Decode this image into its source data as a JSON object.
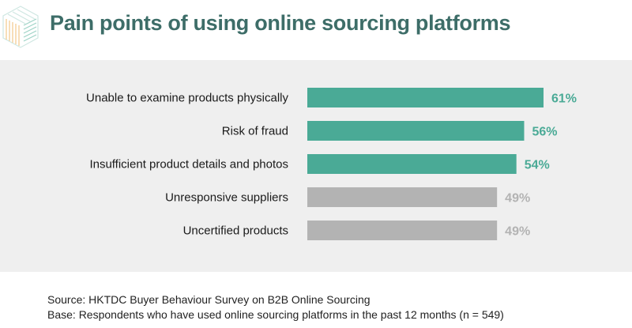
{
  "title": "Pain points of using online sourcing platforms",
  "colors": {
    "highlight": "#4aaa96",
    "muted": "#b3b3b3",
    "title": "#3d6d68",
    "panel": "#efefef"
  },
  "chart_data": {
    "type": "bar",
    "orientation": "horizontal",
    "categories": [
      "Unable to examine products physically",
      "Risk of fraud",
      "Insufficient product details and photos",
      "Unresponsive suppliers",
      "Uncertified products"
    ],
    "values": [
      61,
      56,
      54,
      49,
      49
    ],
    "value_labels": [
      "61%",
      "56%",
      "54%",
      "49%",
      "49%"
    ],
    "highlighted": [
      true,
      true,
      true,
      false,
      false
    ],
    "title": "Pain points of using online sourcing platforms",
    "xlabel": "",
    "ylabel": "",
    "grid": false,
    "legend": "none"
  },
  "footer": {
    "source": "Source: HKTDC Buyer Behaviour Survey on B2B Online Sourcing",
    "base": "Base: Respondents who have used online sourcing platforms in the past 12 months (n = 549)"
  }
}
